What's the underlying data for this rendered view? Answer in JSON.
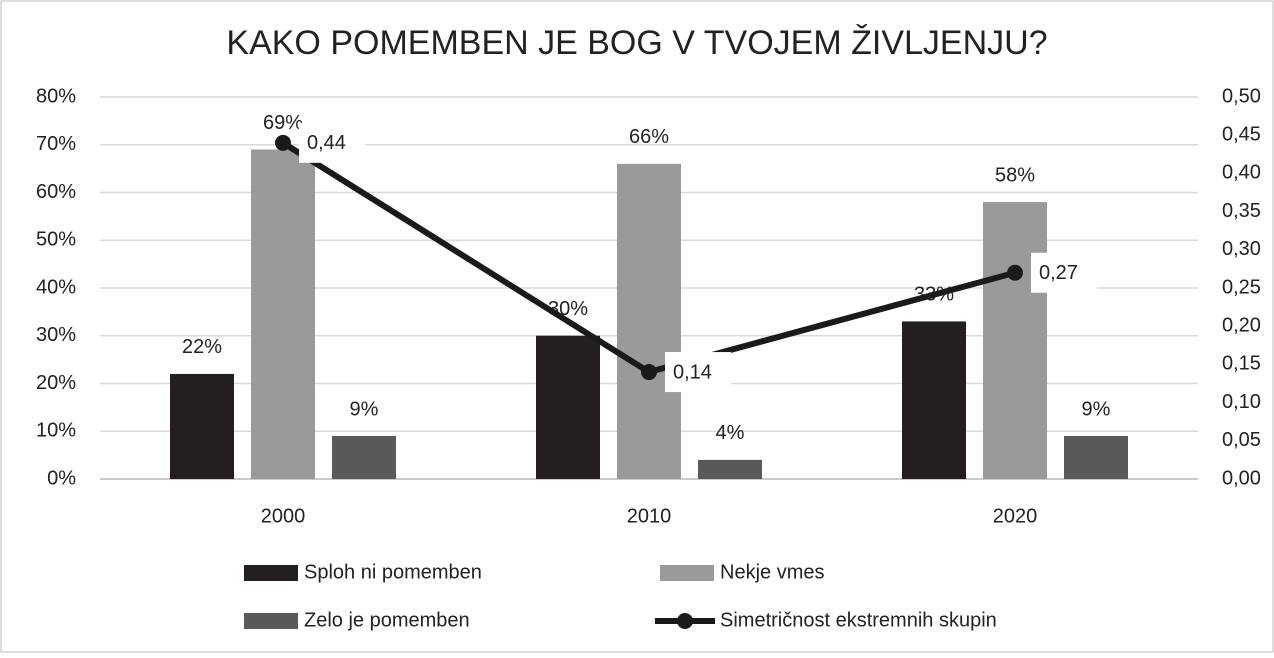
{
  "chart_data": {
    "type": "bar",
    "title": "KAKO POMEMBEN JE BOG V TVOJEM ŽIVLJENJU?",
    "categories": [
      "2000",
      "2010",
      "2020"
    ],
    "series": [
      {
        "name": "Sploh ni pomemben",
        "color": "#231f20",
        "values": [
          22,
          30,
          33
        ],
        "value_labels": [
          "22%",
          "30%",
          "33%"
        ]
      },
      {
        "name": "Nekje vmes",
        "color": "#999a9c",
        "values": [
          69,
          66,
          58
        ],
        "value_labels": [
          "69%",
          "66%",
          "58%"
        ]
      },
      {
        "name": "Zelo je pomemben",
        "color": "#58595b",
        "values": [
          9,
          4,
          9
        ],
        "value_labels": [
          "9%",
          "4%",
          "9%"
        ]
      },
      {
        "name": "Simetričnost ekstremnih skupin",
        "type": "line",
        "axis": "y2",
        "color": "#1a1a1a",
        "values": [
          0.44,
          0.14,
          0.27
        ],
        "value_labels": [
          "0,44",
          "0,14",
          "0,27"
        ]
      }
    ],
    "ylim": [
      0,
      80
    ],
    "yticks": [
      {
        "value": 0,
        "label": "0%"
      },
      {
        "value": 10,
        "label": "10%"
      },
      {
        "value": 20,
        "label": "20%"
      },
      {
        "value": 30,
        "label": "30%"
      },
      {
        "value": 40,
        "label": "40%"
      },
      {
        "value": 50,
        "label": "50%"
      },
      {
        "value": 60,
        "label": "60%"
      },
      {
        "value": 70,
        "label": "70%"
      },
      {
        "value": 80,
        "label": "80%"
      }
    ],
    "y2lim": [
      0,
      0.5
    ],
    "y2ticks": [
      {
        "value": 0,
        "label": "0,00"
      },
      {
        "value": 0.05,
        "label": "0,05"
      },
      {
        "value": 0.1,
        "label": "0,10"
      },
      {
        "value": 0.15,
        "label": "0,15"
      },
      {
        "value": 0.2,
        "label": "0,20"
      },
      {
        "value": 0.25,
        "label": "0,25"
      },
      {
        "value": 0.3,
        "label": "0,30"
      },
      {
        "value": 0.35,
        "label": "0,35"
      },
      {
        "value": 0.4,
        "label": "0,40"
      },
      {
        "value": 0.45,
        "label": "0,45"
      },
      {
        "value": 0.5,
        "label": "0,50"
      }
    ],
    "grid": true
  }
}
